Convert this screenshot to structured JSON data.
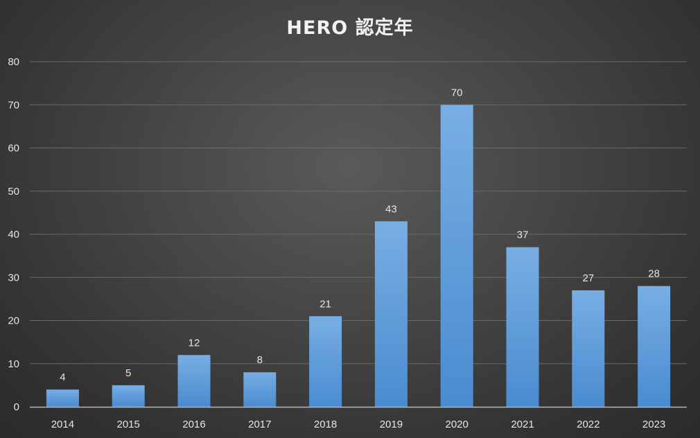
{
  "chart_data": {
    "type": "bar",
    "title": "HERO 認定年",
    "xlabel": "",
    "ylabel": "",
    "categories": [
      "2014",
      "2015",
      "2016",
      "2017",
      "2018",
      "2019",
      "2020",
      "2021",
      "2022",
      "2023"
    ],
    "values": [
      4,
      5,
      12,
      8,
      21,
      43,
      70,
      37,
      27,
      28
    ],
    "ylim": [
      0,
      80
    ],
    "yticks": [
      0,
      10,
      20,
      30,
      40,
      50,
      60,
      70,
      80
    ],
    "grid": true,
    "legend": "none",
    "data_labels": true
  },
  "colors": {
    "bar_top": "#78aee3",
    "bar_bottom": "#4a8bd0",
    "grid": "#6a6a6a",
    "axis": "#b5b5b5",
    "text": "#e6e6e6"
  }
}
